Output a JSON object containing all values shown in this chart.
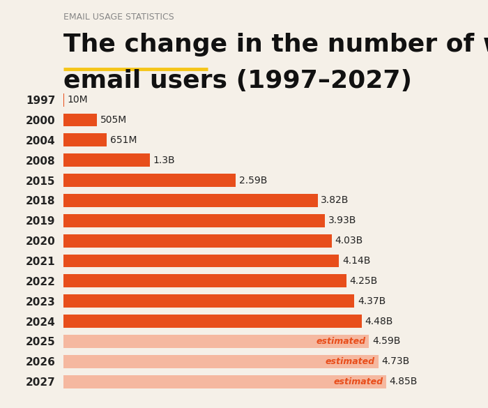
{
  "subtitle": "EMAIL USAGE STATISTICS",
  "title_line1": "The change in the number of worldwide",
  "title_line2": "email users (1997–2027)",
  "title_underline_word": "change",
  "background_color": "#f5f0e8",
  "bar_color_actual": "#e84e1b",
  "bar_color_estimated": "#f5b8a0",
  "estimated_label_color": "#e84e1b",
  "label_color_actual": "#222222",
  "years": [
    "1997",
    "2000",
    "2004",
    "2008",
    "2015",
    "2018",
    "2019",
    "2020",
    "2021",
    "2022",
    "2023",
    "2024",
    "2025",
    "2026",
    "2027"
  ],
  "values_billions": [
    0.01,
    0.505,
    0.651,
    1.3,
    2.59,
    3.82,
    3.93,
    4.03,
    4.14,
    4.25,
    4.37,
    4.48,
    4.59,
    4.73,
    4.85
  ],
  "labels": [
    "10M",
    "505M",
    "651M",
    "1.3B",
    "2.59B",
    "3.82B",
    "3.93B",
    "4.03B",
    "4.14B",
    "4.25B",
    "4.37B",
    "4.48B",
    "4.59B",
    "4.73B",
    "4.85B"
  ],
  "estimated": [
    false,
    false,
    false,
    false,
    false,
    false,
    false,
    false,
    false,
    false,
    false,
    false,
    true,
    true,
    true
  ],
  "xmax": 5.5,
  "subtitle_color": "#888888",
  "subtitle_fontsize": 9,
  "title_fontsize": 26,
  "year_fontsize": 11,
  "label_fontsize": 10,
  "underline_color": "#f5c518",
  "bar_height": 0.65
}
